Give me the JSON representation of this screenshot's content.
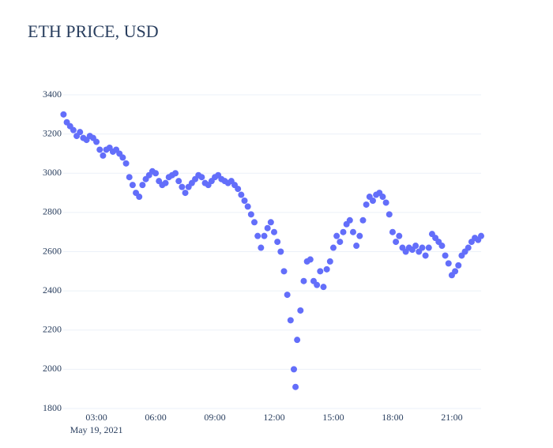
{
  "chart_data": {
    "type": "scatter",
    "title": "ETH PRICE, USD",
    "x": [
      "2021-05-19T01:20",
      "2021-05-19T01:30",
      "2021-05-19T01:40",
      "2021-05-19T01:50",
      "2021-05-19T02:00",
      "2021-05-19T02:10",
      "2021-05-19T02:20",
      "2021-05-19T02:30",
      "2021-05-19T02:40",
      "2021-05-19T02:50",
      "2021-05-19T03:00",
      "2021-05-19T03:10",
      "2021-05-19T03:20",
      "2021-05-19T03:30",
      "2021-05-19T03:40",
      "2021-05-19T03:50",
      "2021-05-19T04:00",
      "2021-05-19T04:10",
      "2021-05-19T04:20",
      "2021-05-19T04:30",
      "2021-05-19T04:40",
      "2021-05-19T04:50",
      "2021-05-19T05:00",
      "2021-05-19T05:10",
      "2021-05-19T05:20",
      "2021-05-19T05:30",
      "2021-05-19T05:40",
      "2021-05-19T05:50",
      "2021-05-19T06:00",
      "2021-05-19T06:10",
      "2021-05-19T06:20",
      "2021-05-19T06:30",
      "2021-05-19T06:40",
      "2021-05-19T06:50",
      "2021-05-19T07:00",
      "2021-05-19T07:10",
      "2021-05-19T07:20",
      "2021-05-19T07:30",
      "2021-05-19T07:40",
      "2021-05-19T07:50",
      "2021-05-19T08:00",
      "2021-05-19T08:10",
      "2021-05-19T08:20",
      "2021-05-19T08:30",
      "2021-05-19T08:40",
      "2021-05-19T08:50",
      "2021-05-19T09:00",
      "2021-05-19T09:10",
      "2021-05-19T09:20",
      "2021-05-19T09:30",
      "2021-05-19T09:40",
      "2021-05-19T09:50",
      "2021-05-19T10:00",
      "2021-05-19T10:10",
      "2021-05-19T10:20",
      "2021-05-19T10:30",
      "2021-05-19T10:40",
      "2021-05-19T10:50",
      "2021-05-19T11:00",
      "2021-05-19T11:10",
      "2021-05-19T11:20",
      "2021-05-19T11:30",
      "2021-05-19T11:40",
      "2021-05-19T11:50",
      "2021-05-19T12:00",
      "2021-05-19T12:10",
      "2021-05-19T12:20",
      "2021-05-19T12:30",
      "2021-05-19T12:40",
      "2021-05-19T12:50",
      "2021-05-19T13:00",
      "2021-05-19T13:05",
      "2021-05-19T13:10",
      "2021-05-19T13:20",
      "2021-05-19T13:30",
      "2021-05-19T13:40",
      "2021-05-19T13:50",
      "2021-05-19T14:00",
      "2021-05-19T14:10",
      "2021-05-19T14:20",
      "2021-05-19T14:30",
      "2021-05-19T14:40",
      "2021-05-19T14:50",
      "2021-05-19T15:00",
      "2021-05-19T15:10",
      "2021-05-19T15:20",
      "2021-05-19T15:30",
      "2021-05-19T15:40",
      "2021-05-19T15:50",
      "2021-05-19T16:00",
      "2021-05-19T16:10",
      "2021-05-19T16:20",
      "2021-05-19T16:30",
      "2021-05-19T16:40",
      "2021-05-19T16:50",
      "2021-05-19T17:00",
      "2021-05-19T17:10",
      "2021-05-19T17:20",
      "2021-05-19T17:30",
      "2021-05-19T17:40",
      "2021-05-19T17:50",
      "2021-05-19T18:00",
      "2021-05-19T18:10",
      "2021-05-19T18:20",
      "2021-05-19T18:30",
      "2021-05-19T18:40",
      "2021-05-19T18:50",
      "2021-05-19T19:00",
      "2021-05-19T19:10",
      "2021-05-19T19:20",
      "2021-05-19T19:30",
      "2021-05-19T19:40",
      "2021-05-19T19:50",
      "2021-05-19T20:00",
      "2021-05-19T20:10",
      "2021-05-19T20:20",
      "2021-05-19T20:30",
      "2021-05-19T20:40",
      "2021-05-19T20:50",
      "2021-05-19T21:00",
      "2021-05-19T21:10",
      "2021-05-19T21:20",
      "2021-05-19T21:30",
      "2021-05-19T21:40",
      "2021-05-19T21:50",
      "2021-05-19T22:00",
      "2021-05-19T22:10",
      "2021-05-19T22:20",
      "2021-05-19T22:29"
    ],
    "values": [
      3300,
      3260,
      3240,
      3220,
      3190,
      3210,
      3180,
      3170,
      3190,
      3180,
      3160,
      3120,
      3090,
      3120,
      3130,
      3110,
      3120,
      3100,
      3080,
      3050,
      2980,
      2940,
      2900,
      2880,
      2940,
      2970,
      2990,
      3010,
      3000,
      2960,
      2940,
      2950,
      2980,
      2990,
      3000,
      2960,
      2930,
      2900,
      2930,
      2950,
      2970,
      2990,
      2980,
      2950,
      2940,
      2960,
      2980,
      2990,
      2970,
      2960,
      2950,
      2960,
      2940,
      2920,
      2890,
      2860,
      2830,
      2790,
      2750,
      2680,
      2620,
      2680,
      2720,
      2750,
      2700,
      2650,
      2600,
      2500,
      2380,
      2250,
      2000,
      1910,
      2150,
      2300,
      2450,
      2550,
      2560,
      2450,
      2430,
      2500,
      2420,
      2510,
      2550,
      2620,
      2680,
      2650,
      2700,
      2740,
      2760,
      2700,
      2630,
      2680,
      2760,
      2840,
      2880,
      2860,
      2890,
      2900,
      2880,
      2850,
      2790,
      2700,
      2650,
      2680,
      2620,
      2600,
      2620,
      2610,
      2630,
      2600,
      2620,
      2580,
      2620,
      2690,
      2670,
      2650,
      2630,
      2580,
      2540,
      2480,
      2500,
      2530,
      2580,
      2600,
      2620,
      2650,
      2670,
      2660,
      2680
    ],
    "color": "#636efa",
    "xlim": [
      "2021-05-19T01:19",
      "2021-05-19T22:29"
    ],
    "xticks": [
      {
        "value": "2021-05-19T03:00",
        "label": "03:00"
      },
      {
        "value": "2021-05-19T06:00",
        "label": "06:00"
      },
      {
        "value": "2021-05-19T09:00",
        "label": "09:00"
      },
      {
        "value": "2021-05-19T12:00",
        "label": "12:00"
      },
      {
        "value": "2021-05-19T15:00",
        "label": "15:00"
      },
      {
        "value": "2021-05-19T18:00",
        "label": "18:00"
      },
      {
        "value": "2021-05-19T21:00",
        "label": "21:00"
      }
    ],
    "x_date_label": "May 19, 2021",
    "ylim": [
      1800,
      3400
    ],
    "yticks": [
      1800,
      2000,
      2200,
      2400,
      2600,
      2800,
      3000,
      3200,
      3400
    ],
    "grid": true
  }
}
